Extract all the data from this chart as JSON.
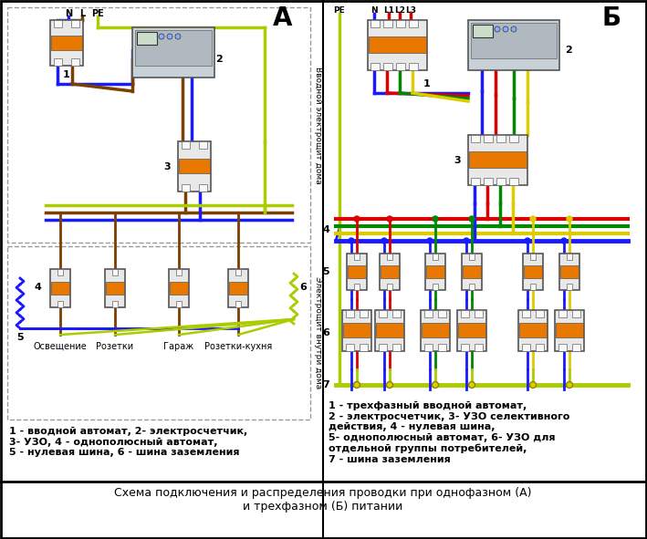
{
  "title_bottom": "Схема подключения и распределения проводки при однофазном (А)\nи трехфазном (Б) питании",
  "label_A": "А",
  "label_B": "Б",
  "left_legend": "1 - вводной автомат, 2- электросчетчик,\n3- УЗО, 4 - однополюсный автомат,\n5 - нулевая шина, 6 - шина заземления",
  "right_legend": "1 - трехфазный вводной автомат,\n2 - электросчетчик, 3- УЗО селективного\nдействия, 4 - нулевая шина,\n5- однополюсный автомат, 6- УЗО для\nотдельной группы потребителей,\n7 - шина заземления",
  "left_labels_top": [
    "N",
    "L",
    "PE"
  ],
  "right_labels_top": [
    "PE",
    "N",
    "L1",
    "L2",
    "L3"
  ],
  "left_bottom_labels": [
    "Освещение",
    "Розетки",
    "Гараж",
    "Розетки-кухня"
  ],
  "left_section_upper": "Вводной электрощит дома",
  "left_section_lower": "Электрощит внутри дома",
  "bg_color": "#ffffff",
  "wire_blue": "#1a1aff",
  "wire_brown": "#7b3f00",
  "wire_yg": "#aacc00",
  "wire_red": "#dd0000",
  "wire_green": "#008800",
  "wire_yellow": "#ddcc00",
  "comp_body": "#e8e8e8",
  "comp_orange": "#e87800",
  "comp_white": "#f8f8f8",
  "meter_body": "#d8e0e8",
  "coil_color": "#cc8800",
  "dash_color": "#999999",
  "text_bold_fs": 9,
  "legend_fs": 8
}
